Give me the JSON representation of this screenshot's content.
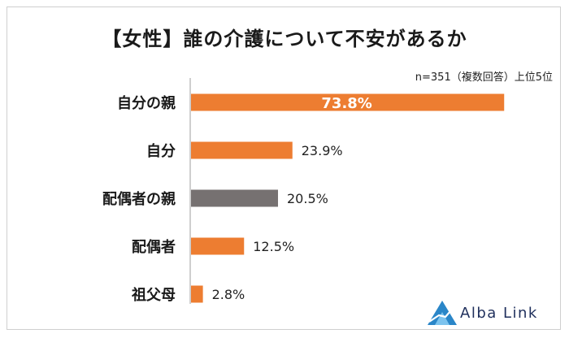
{
  "title": "【女性】誰の介護について不安があるか",
  "note": "n=351（複数回答）上位5位",
  "brand": "Alba Link",
  "colors": {
    "main": "#ed7d31",
    "highlight": "#767171",
    "axis": "#bfbfbf"
  },
  "chart_data": {
    "type": "bar",
    "orientation": "horizontal",
    "title": "【女性】誰の介護について不安があるか",
    "categories": [
      "自分の親",
      "自分",
      "配偶者の親",
      "配偶者",
      "祖父母"
    ],
    "values": [
      73.8,
      23.9,
      20.5,
      12.5,
      2.8
    ],
    "value_labels": [
      "73.8%",
      "23.9%",
      "20.5%",
      "12.5%",
      "2.8%"
    ],
    "highlight_index": 2,
    "xlim": [
      0,
      100
    ],
    "grid": false,
    "legend": "none"
  }
}
